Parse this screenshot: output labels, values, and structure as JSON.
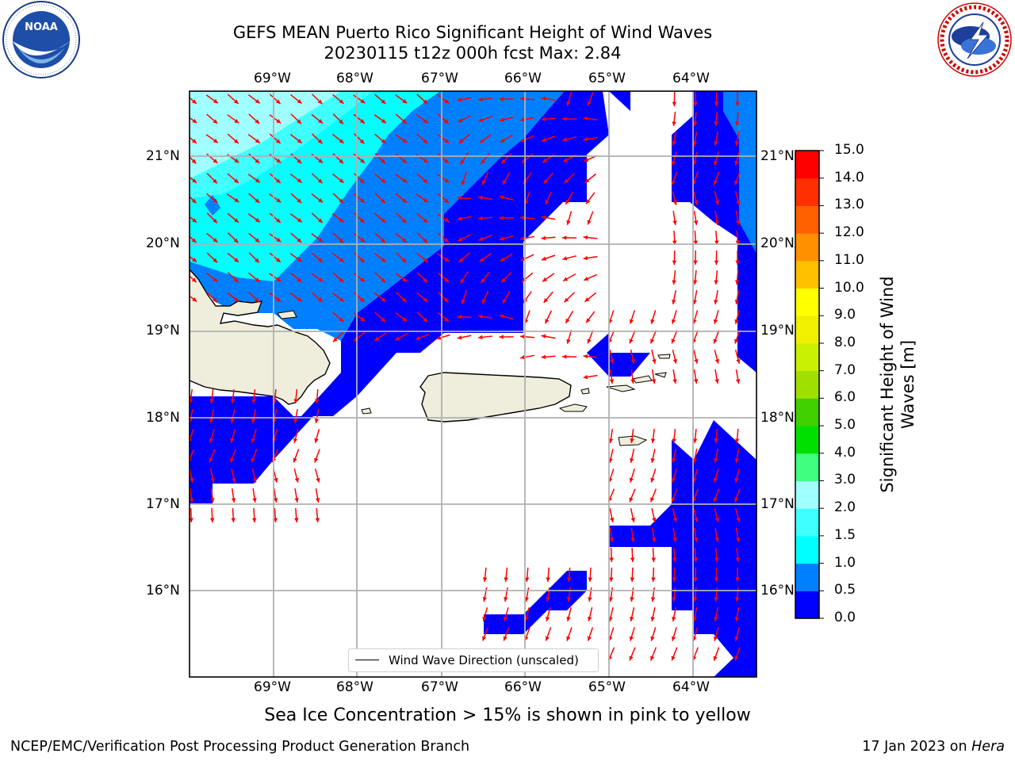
{
  "header": {
    "title_line1": "GEFS MEAN Puerto Rico Significant Height of Wind Waves",
    "title_line2": "20230115 t12z 000h fcst   Max: 2.84"
  },
  "logos": {
    "left": {
      "name": "NOAA",
      "ring_text": "NATIONAL OCEANIC AND ATMOSPHERIC ADMINISTRATION · U.S. DEPARTMENT OF COMMERCE"
    },
    "right": {
      "name": "NATIONAL WEATHER SERVICE"
    }
  },
  "map": {
    "lon_labels": [
      "69°W",
      "68°W",
      "67°W",
      "66°W",
      "65°W",
      "64°W"
    ],
    "lat_labels": [
      "21°N",
      "20°N",
      "19°N",
      "18°N",
      "17°N",
      "16°N"
    ],
    "legend_label": "Wind Wave Direction (unscaled)",
    "colors": {
      "land": "#efeedc",
      "arrow": "#ff0000",
      "grid": "#b0b0b0"
    }
  },
  "colorbar": {
    "label": "Significant Height of Wind Waves [m]",
    "ticks": [
      "0.0",
      "0.5",
      "1.0",
      "1.5",
      "2.0",
      "3.0",
      "4.0",
      "5.0",
      "6.0",
      "7.0",
      "8.0",
      "9.0",
      "10.0",
      "11.0",
      "12.0",
      "13.0",
      "14.0",
      "15.0"
    ],
    "colors": [
      "#0000ff",
      "#0080ff",
      "#00ffff",
      "#40ffff",
      "#a0ffff",
      "#40ff80",
      "#00e000",
      "#40d000",
      "#a0e000",
      "#c8f000",
      "#f0f000",
      "#ffff00",
      "#ffc000",
      "#ff9000",
      "#ff6000",
      "#ff3000",
      "#ff0000"
    ]
  },
  "caption": "Sea Ice Concentration > 15% is shown in pink to yellow",
  "footer": {
    "left": "NCEP/EMC/Verification Post Processing Product Generation Branch",
    "right_prefix": "17 Jan 2023 on ",
    "right_host": "Hera"
  }
}
